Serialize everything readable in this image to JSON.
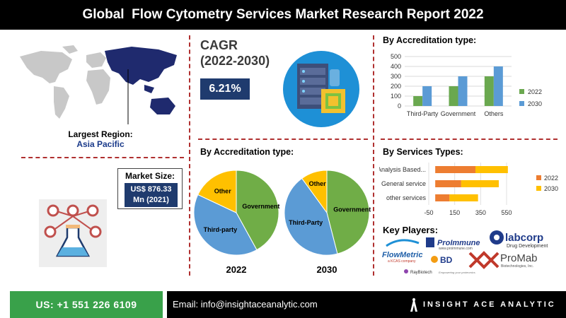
{
  "header": {
    "title": "Global  Flow Cytometry Services Market Research Report 2022"
  },
  "region": {
    "label": "Largest Region:",
    "value": "Asia Pacific"
  },
  "cagr": {
    "title_line1": "CAGR",
    "title_line2": "(2022-2030)",
    "value": "6.21%"
  },
  "market_size": {
    "label": "Market Size:",
    "value_line1": "US$ 876.33",
    "value_line2": "Mn (2021)"
  },
  "key_players": {
    "title": "Key Players:",
    "names": [
      "ProImmune",
      "www.proimmune.com",
      "labcorp",
      "Drug Development",
      "FlowMetric",
      "a KCAS company",
      "BD",
      "ProMab",
      "Biotechnologies, Inc.",
      "RayBiotech",
      "Empowering your proteomics"
    ]
  },
  "footer": {
    "phone": "US: +1 551 226 6109",
    "email": "Email: info@insightaceanalytic.com",
    "brand": "INSIGHT ACE ANALYTIC"
  },
  "colors": {
    "series_2022": "#6aa84f",
    "series_2030": "#5b9bd5",
    "bar2022": "#ed7d31",
    "bar2030": "#ffc000",
    "navy": "#1f3b6e",
    "accent_red": "#b03030"
  },
  "chart_data": [
    {
      "type": "bar",
      "title": "By Accreditation type:",
      "categories": [
        "Third-Party",
        "Government",
        "Others"
      ],
      "series": [
        {
          "name": "2022",
          "values": [
            100,
            200,
            300
          ]
        },
        {
          "name": "2030",
          "values": [
            200,
            300,
            400
          ]
        }
      ],
      "ylim": [
        0,
        500
      ],
      "yticks": [
        0,
        100,
        200,
        300,
        400,
        500
      ],
      "legend": "right"
    },
    {
      "type": "pie",
      "title": "By Accreditation type:",
      "caption": "2022",
      "slices": [
        {
          "label": "Government",
          "value": 42
        },
        {
          "label": "Third-party",
          "value": 40
        },
        {
          "label": "Other",
          "value": 18
        }
      ]
    },
    {
      "type": "pie",
      "caption": "2030",
      "slices": [
        {
          "label": "Government",
          "value": 46
        },
        {
          "label": "Third-Party",
          "value": 44
        },
        {
          "label": "Other",
          "value": 10
        }
      ]
    },
    {
      "type": "bar",
      "orientation": "horizontal",
      "stacked": true,
      "title": "By Services Types:",
      "categories": [
        "Analysis Based...",
        "General service",
        "other services"
      ],
      "series": [
        {
          "name": "2022",
          "values": [
            310,
            200,
            110
          ]
        },
        {
          "name": "2030",
          "values": [
            250,
            290,
            220
          ]
        }
      ],
      "xlim": [
        -50,
        550
      ],
      "xticks": [
        -50,
        150,
        350,
        550
      ],
      "legend": "right"
    }
  ]
}
